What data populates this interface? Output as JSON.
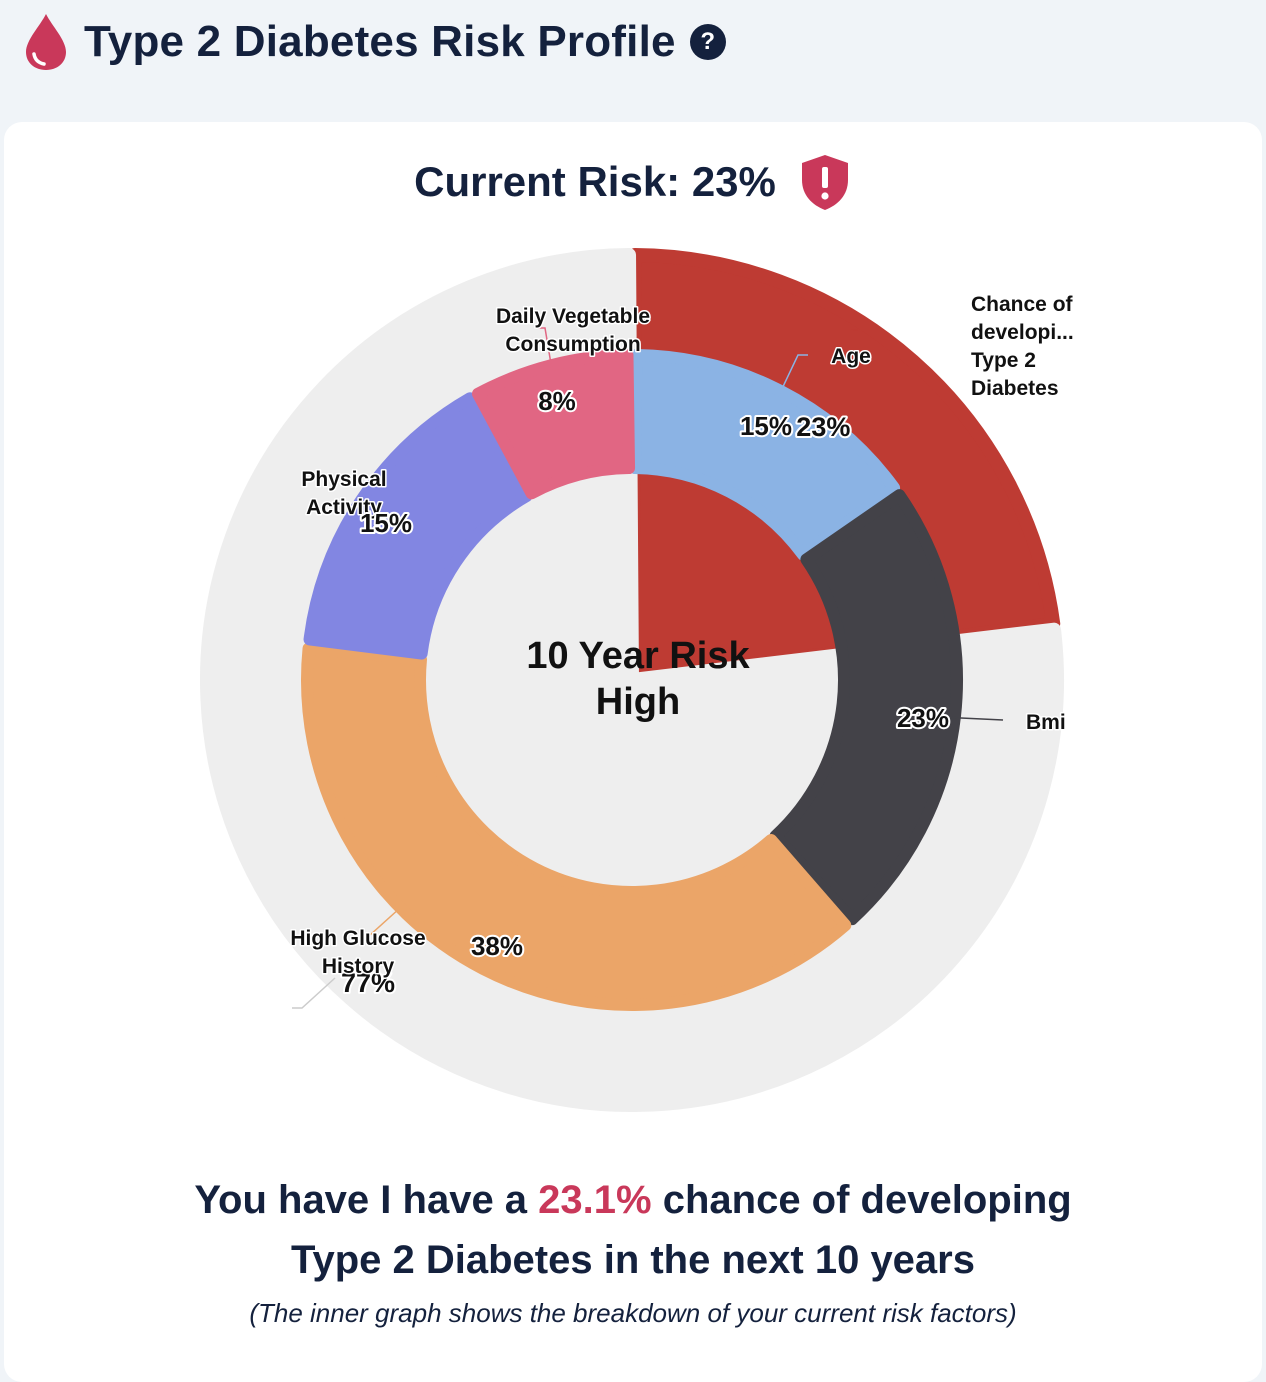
{
  "header": {
    "title": "Type 2 Diabetes Risk Profile",
    "help_icon": "question-circle-icon",
    "drop_icon": "blood-drop-icon"
  },
  "current_risk": {
    "label": "Current Risk: 23%",
    "icon": "shield-alert-icon"
  },
  "colors": {
    "drop": "#c9385a",
    "shield": "#c9385a",
    "outer_risk": "#be3b33",
    "outer_track": "#eeeeee",
    "age": "#8bb3e4",
    "bmi": "#434248",
    "high_glucose_history": "#eba568",
    "physical_activity": "#8286e2",
    "daily_vegetable_consumption": "#e16683",
    "text": "#14213d",
    "highlight": "#c9385a"
  },
  "chart_data": {
    "type": "pie",
    "center_label": [
      "10 Year Risk",
      "High"
    ],
    "outer": {
      "slices": [
        {
          "name": "Chance of developing Type 2 Diabetes",
          "display_label": [
            "Chance of",
            "developi...",
            "Type 2",
            "Diabetes"
          ],
          "value": 23,
          "label": "23%",
          "color": "#be3b33"
        },
        {
          "name": "",
          "value": 77,
          "label": "77%",
          "color": "#eeeeee"
        }
      ]
    },
    "inner": {
      "slices": [
        {
          "name": "Age",
          "display_label": [
            "Age"
          ],
          "value": 15,
          "label": "15%",
          "color": "#8bb3e4"
        },
        {
          "name": "Bmi",
          "display_label": [
            "Bmi"
          ],
          "value": 23,
          "label": "23%",
          "color": "#434248"
        },
        {
          "name": "High Glucose History",
          "display_label": [
            "High Glucose",
            "History"
          ],
          "value": 38,
          "label": "38%",
          "color": "#eba568"
        },
        {
          "name": "Physical Activity",
          "display_label": [
            "Physical",
            "Activity"
          ],
          "value": 15,
          "label": "15%",
          "color": "#8286e2"
        },
        {
          "name": "Daily Vegetable Consumption",
          "display_label": [
            "Daily Vegetable",
            "Consumption"
          ],
          "value": 8,
          "label": "8%",
          "color": "#e16683"
        }
      ]
    }
  },
  "summary": {
    "prefix": "You have I have a",
    "highlight": "23.1%",
    "suffix": "chance of developing",
    "line2": "Type 2 Diabetes in the next 10 years"
  },
  "footnote": "(The inner graph shows the breakdown of your current risk factors)"
}
